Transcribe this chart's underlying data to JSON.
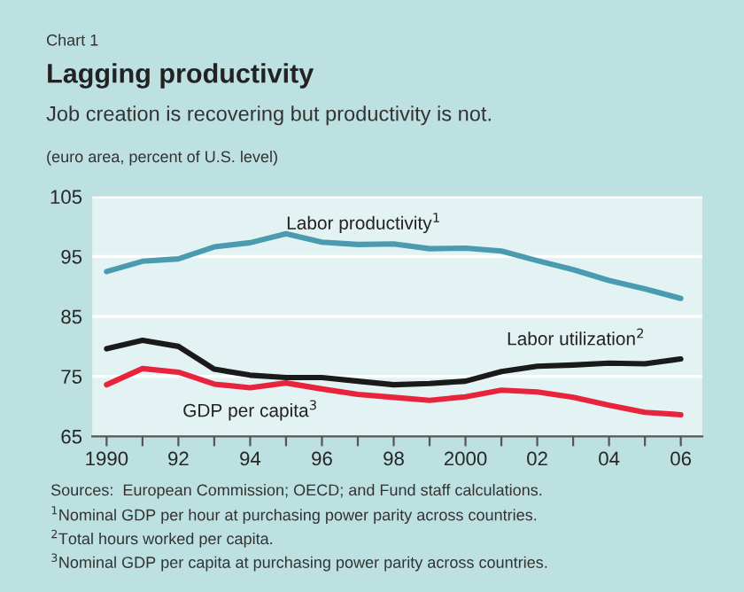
{
  "chart_data": {
    "type": "line",
    "title": "Lagging productivity",
    "subtitle": "Job creation is recovering but productivity is not.",
    "ylabel": "(euro area, percent of U.S. level)",
    "annotations": [
      "Chart 1",
      "Sources:  European Commission; OECD; and Fund staff calculations.",
      "$^{1}$Nominal GDP per hour at purchasing power parity across countries.",
      "$^{2}$Total hours worked per capita.",
      "$^{3}$Nominal GDP per capita at purchasing power parity across countries."
    ],
    "x": [
      1990,
      1991,
      1992,
      1993,
      1994,
      1995,
      1996,
      1997,
      1998,
      1999,
      2000,
      2001,
      2002,
      2003,
      2004,
      2005,
      2006
    ],
    "series": [
      {
        "name": "Labor productivity$^{1}$",
        "color": "#4a9bb0",
        "values": [
          92.5,
          94.2,
          94.6,
          96.6,
          97.3,
          98.8,
          97.4,
          97.0,
          97.1,
          96.3,
          96.4,
          95.9,
          94.3,
          92.8,
          91.0,
          89.6,
          88.0
        ]
      },
      {
        "name": "Labor utilization$^{2}$",
        "color": "#1a1a1a",
        "values": [
          79.6,
          81.0,
          80.0,
          76.2,
          75.2,
          74.8,
          74.8,
          74.2,
          73.6,
          73.8,
          74.2,
          75.8,
          76.7,
          76.9,
          77.2,
          77.1,
          77.9
        ]
      },
      {
        "name": "GDP per capita$^{3}$",
        "color": "#e8243c",
        "values": [
          73.6,
          76.3,
          75.7,
          73.7,
          73.1,
          73.9,
          72.9,
          72.0,
          71.5,
          71.0,
          71.6,
          72.7,
          72.4,
          71.5,
          70.2,
          69.0,
          68.6
        ]
      }
    ],
    "xlim": [
      1989.6,
      2006.6
    ],
    "ylim": [
      65,
      105
    ],
    "xticks": [
      {
        "value": 1990,
        "label": "1990"
      },
      {
        "value": 1991,
        "label": null
      },
      {
        "value": 1992,
        "label": "92"
      },
      {
        "value": 1993,
        "label": null
      },
      {
        "value": 1994,
        "label": "94"
      },
      {
        "value": 1995,
        "label": null
      },
      {
        "value": 1996,
        "label": "96"
      },
      {
        "value": 1997,
        "label": null
      },
      {
        "value": 1998,
        "label": "98"
      },
      {
        "value": 1999,
        "label": null
      },
      {
        "value": 2000,
        "label": "2000"
      },
      {
        "value": 2001,
        "label": null
      },
      {
        "value": 2002,
        "label": "02"
      },
      {
        "value": 2003,
        "label": null
      },
      {
        "value": 2004,
        "label": "04"
      },
      {
        "value": 2005,
        "label": null
      },
      {
        "value": 2006,
        "label": "06"
      }
    ],
    "yticks": [
      65,
      75,
      85,
      95,
      105
    ],
    "grid": "y",
    "legend": false,
    "marker": "none",
    "line_style": "solid"
  }
}
